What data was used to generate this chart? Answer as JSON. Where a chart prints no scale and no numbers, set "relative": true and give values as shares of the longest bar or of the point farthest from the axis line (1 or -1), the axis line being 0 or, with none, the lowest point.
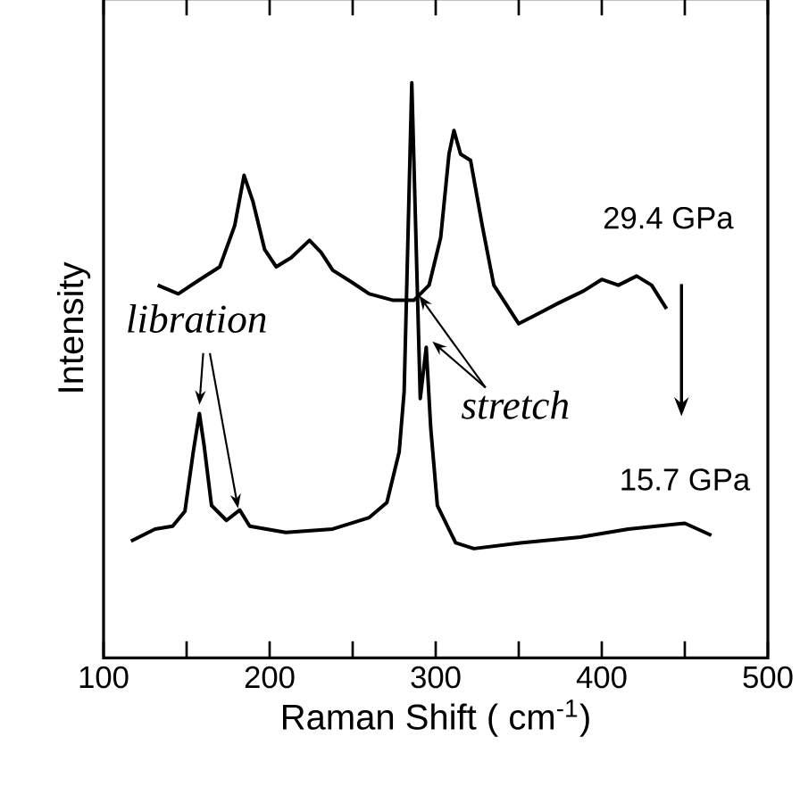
{
  "chart_data": {
    "type": "line",
    "relative": true,
    "xlabel": "Raman Shift ( cm$^{-1}$)",
    "ylabel": "Intensity",
    "xlim": [
      100,
      500
    ],
    "xticks": [
      100,
      200,
      300,
      400,
      500
    ],
    "grid": false,
    "legend": false,
    "marker": "none",
    "line_style": "solid",
    "annotations": [
      "libration",
      "stretch"
    ],
    "series": [
      {
        "name": "29.4 GPa",
        "color": "#000000",
        "x": [
          132.6,
          145,
          156,
          170,
          179,
          184.6,
          190,
          197,
          204,
          213,
          224,
          231,
          238,
          249,
          260,
          274,
          287,
          296,
          303,
          308,
          311,
          315,
          321,
          328,
          335,
          350,
          360,
          374,
          389,
          400,
          410,
          421,
          430,
          439
        ],
        "values": [
          0.648,
          0.633,
          0.654,
          0.68,
          0.752,
          0.839,
          0.793,
          0.71,
          0.68,
          0.696,
          0.726,
          0.705,
          0.674,
          0.654,
          0.633,
          0.622,
          0.622,
          0.648,
          0.731,
          0.876,
          0.917,
          0.876,
          0.865,
          0.752,
          0.648,
          0.581,
          0.596,
          0.617,
          0.638,
          0.658,
          0.648,
          0.664,
          0.648,
          0.607
        ]
      },
      {
        "name": "15.7 GPa",
        "color": "#000000",
        "x": [
          116.5,
          131,
          141.6,
          149,
          154,
          157.7,
          160.6,
          165,
          174,
          182,
          188,
          209.7,
          238,
          260,
          270.6,
          278,
          281,
          285.6,
          290.7,
          294.3,
          297,
          301,
          312,
          323,
          351,
          387,
          416,
          450,
          466
        ],
        "values": [
          0.203,
          0.224,
          0.229,
          0.255,
          0.358,
          0.425,
          0.368,
          0.265,
          0.239,
          0.257,
          0.229,
          0.218,
          0.224,
          0.244,
          0.27,
          0.358,
          0.463,
          1.0,
          0.451,
          0.54,
          0.4,
          0.265,
          0.2,
          0.19,
          0.2,
          0.21,
          0.224,
          0.234,
          0.213
        ]
      }
    ]
  }
}
